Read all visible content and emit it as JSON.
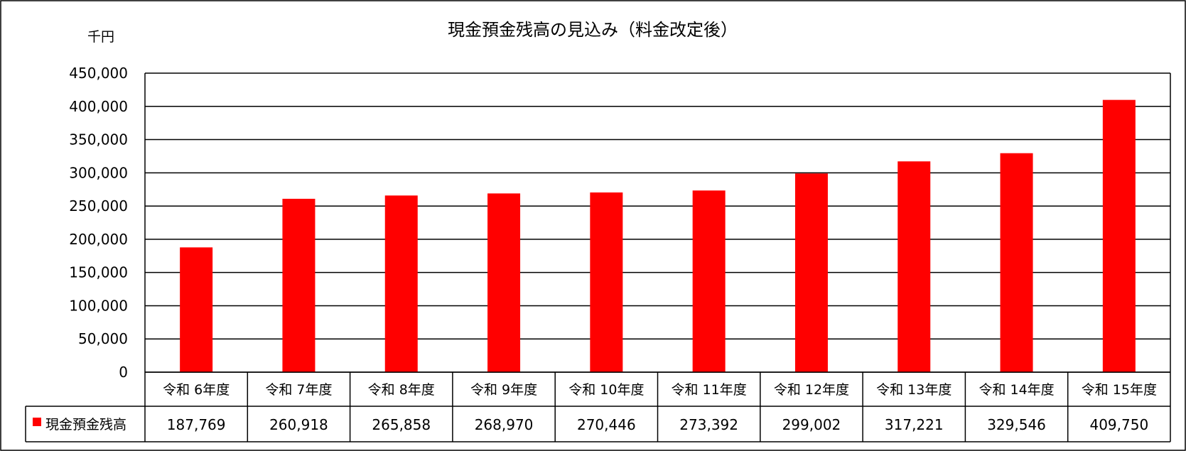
{
  "chart_data": {
    "type": "bar",
    "title": "現金預金残高の見込み（料金改定後）",
    "unit_label": "千円",
    "categories": [
      "令和 6年度",
      "令和 7年度",
      "令和 8年度",
      "令和 9年度",
      "令和 10年度",
      "令和 11年度",
      "令和 12年度",
      "令和 13年度",
      "令和 14年度",
      "令和 15年度"
    ],
    "series": [
      {
        "name": "現金預金残高",
        "color": "#ff0000",
        "values": [
          187769,
          260918,
          265858,
          268970,
          270446,
          273392,
          299002,
          317221,
          329546,
          409750
        ],
        "value_labels": [
          "187,769",
          "260,918",
          "265,858",
          "268,970",
          "270,446",
          "273,392",
          "299,002",
          "317,221",
          "329,546",
          "409,750"
        ]
      }
    ],
    "ylim": [
      0,
      450000
    ],
    "yticks": [
      0,
      50000,
      100000,
      150000,
      200000,
      250000,
      300000,
      350000,
      400000,
      450000
    ],
    "ytick_labels": [
      "0",
      "50,000",
      "100,000",
      "150,000",
      "200,000",
      "250,000",
      "300,000",
      "350,000",
      "400,000",
      "450,000"
    ],
    "grid": true,
    "legend": "data-table"
  }
}
